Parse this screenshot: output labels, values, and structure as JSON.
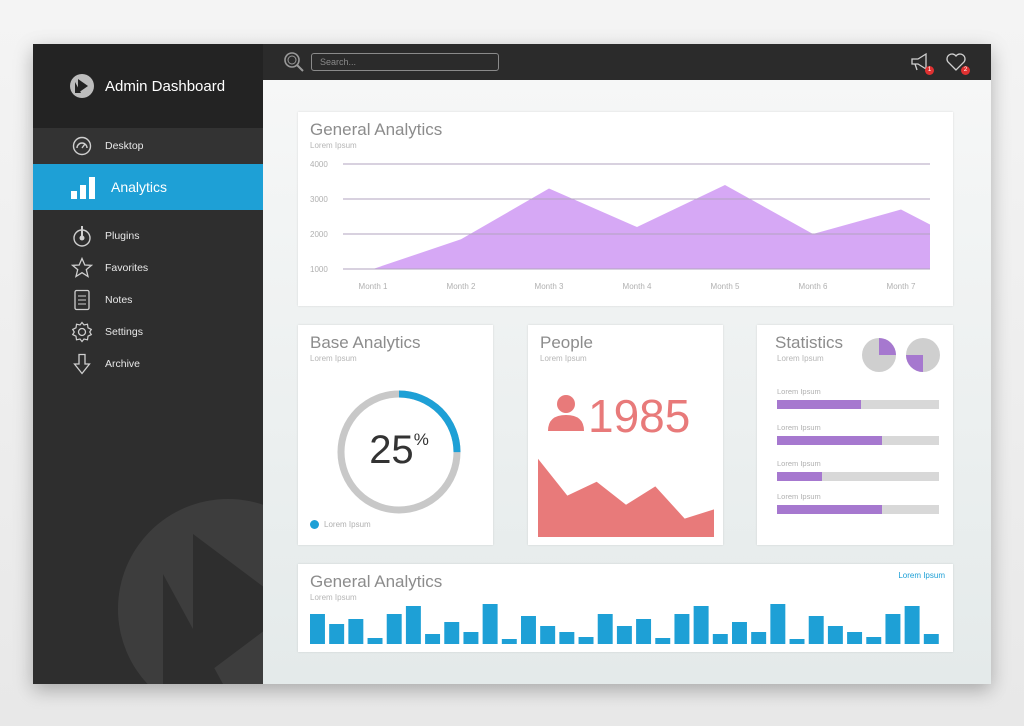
{
  "brand": {
    "title": "Admin Dashboard"
  },
  "sidebar": {
    "items": [
      {
        "label": "Desktop",
        "icon": "gauge-icon"
      },
      {
        "label": "Analytics",
        "icon": "bar-chart-icon",
        "active": true
      },
      {
        "label": "Plugins",
        "icon": "plug-icon"
      },
      {
        "label": "Favorites",
        "icon": "star-icon"
      },
      {
        "label": "Notes",
        "icon": "notes-icon"
      },
      {
        "label": "Settings",
        "icon": "gear-icon"
      },
      {
        "label": "Archive",
        "icon": "download-arrow-icon"
      }
    ]
  },
  "topbar": {
    "search_placeholder": "Search...",
    "notifications": [
      {
        "icon": "megaphone-icon",
        "count": "1"
      },
      {
        "icon": "heart-icon",
        "count": "2"
      }
    ]
  },
  "colors": {
    "accent": "#1ea0d6",
    "purple": "#a678cf",
    "area_purple": "#d6a8f5",
    "salmon": "#e87a7a",
    "sidebar": "#2e2e2e"
  },
  "general_analytics": {
    "title": "General Analytics",
    "subtitle": "Lorem Ipsum",
    "chart_data": {
      "type": "area",
      "categories": [
        "Month 1",
        "Month 2",
        "Month 3",
        "Month 4",
        "Month 5",
        "Month 6",
        "Month 7"
      ],
      "values": [
        1000,
        1850,
        3300,
        2200,
        3400,
        2000,
        2700
      ],
      "y_ticks": [
        "4000",
        "3000",
        "2000",
        "1000"
      ],
      "ylim": [
        1000,
        4000
      ],
      "grid": true
    }
  },
  "base_analytics": {
    "title": "Base Analytics",
    "subtitle": "Lorem Ipsum",
    "value": "25",
    "unit": "%",
    "fraction": 0.25,
    "legend": "Lorem Ipsum"
  },
  "people": {
    "title": "People",
    "subtitle": "Lorem Ipsum",
    "count": "1985",
    "chart_data": {
      "type": "area",
      "values": [
        85,
        45,
        60,
        35,
        55,
        20,
        30
      ]
    }
  },
  "statistics": {
    "title": "Statistics",
    "subtitle": "Lorem Ipsum",
    "pies": [
      0.25,
      0.25
    ],
    "bars": [
      {
        "label": "Lorem Ipsum",
        "fraction": 0.52
      },
      {
        "label": "Lorem Ipsum",
        "fraction": 0.65
      },
      {
        "label": "Lorem Ipsum",
        "fraction": 0.28
      },
      {
        "label": "Lorem Ipsum",
        "fraction": 0.65
      }
    ]
  },
  "general_analytics_2": {
    "title": "General Analytics",
    "subtitle": "Lorem Ipsum",
    "link": "Lorem Ipsum",
    "chart_data": {
      "type": "bar",
      "values": [
        30,
        20,
        25,
        6,
        30,
        38,
        10,
        22,
        12,
        40,
        5,
        28,
        18,
        12,
        7,
        30,
        18,
        25,
        6,
        30,
        38,
        10,
        22,
        12,
        40,
        5,
        28,
        18,
        12,
        7,
        30,
        38,
        10
      ]
    }
  }
}
